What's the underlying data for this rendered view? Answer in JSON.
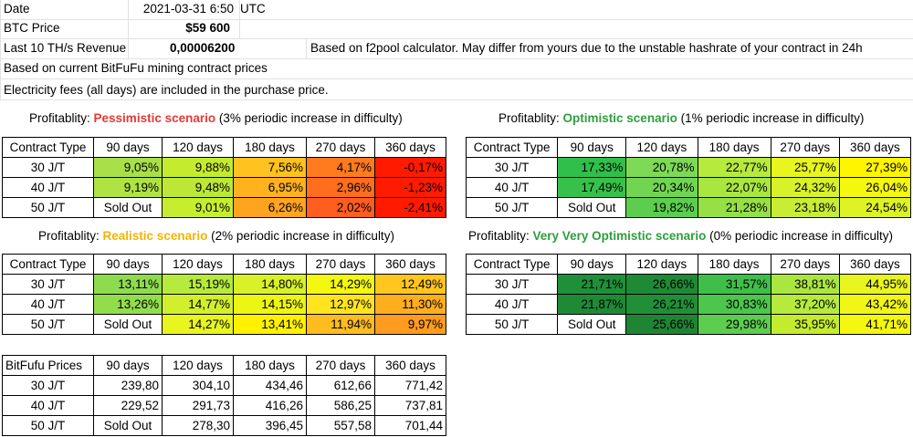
{
  "header": {
    "date_label": "Date",
    "date_value": "2021-03-31 6:50",
    "date_tz": "UTC",
    "btc_label": "BTC Price",
    "btc_value": "$59 600",
    "rev_label": "Last 10 TH/s Revenue",
    "rev_value": "0,00006200",
    "rev_note": "Based on f2pool calculator. May differ from yours due to the unstable hashrate of your contract in 24h",
    "note1": "Based on current BitFuFu mining contract prices",
    "note2": "Electricity fees (all days) are included in the purchase price."
  },
  "colors": {
    "pessimistic": "#e53935",
    "optimistic": "#2e9e3e",
    "realistic": "#f4b400",
    "very_optimistic": "#2e9e3e"
  },
  "columns": [
    "Contract Type",
    "90 days",
    "120 days",
    "180 days",
    "270 days",
    "360 days"
  ],
  "tables": [
    {
      "key": "pess",
      "prefix": "Profitablity: ",
      "scenario": "Pessimistic scenario",
      "suffix": " (3% periodic increase in difficulty)",
      "rows": [
        {
          "type": "30 J/T",
          "values": [
            "9,05%",
            "9,88%",
            "7,56%",
            "4,17%",
            "-0,17%"
          ],
          "colors": [
            "#a9e04a",
            "#c4ec2e",
            "#ffc21e",
            "#ff7b1e",
            "#ff1a00"
          ]
        },
        {
          "type": "40 J/T",
          "values": [
            "9,19%",
            "9,48%",
            "6,95%",
            "2,96%",
            "-1,23%"
          ],
          "colors": [
            "#b0e243",
            "#bde737",
            "#ffb21e",
            "#ff6d1e",
            "#ff1a00"
          ]
        },
        {
          "type": "50 J/T",
          "values": [
            "Sold Out",
            "9,01%",
            "6,26%",
            "2,02%",
            "-2,41%"
          ],
          "colors": [
            "#ffffff",
            "#c6ee2e",
            "#ffa41e",
            "#ff5e1e",
            "#ff1a00"
          ]
        }
      ]
    },
    {
      "key": "opt",
      "prefix": "Profitablity: ",
      "scenario": "Optimistic scenario",
      "suffix": " (1% periodic increase in difficulty)",
      "rows": [
        {
          "type": "30 J/T",
          "values": [
            "17,33%",
            "20,78%",
            "22,77%",
            "25,77%",
            "27,39%"
          ],
          "colors": [
            "#2fbf4a",
            "#7ed957",
            "#b6ea3c",
            "#e8f51e",
            "#fff500"
          ]
        },
        {
          "type": "40 J/T",
          "values": [
            "17,49%",
            "20,34%",
            "22,07%",
            "24,32%",
            "26,04%"
          ],
          "colors": [
            "#36c24a",
            "#72d552",
            "#aae640",
            "#d8f129",
            "#f4f70e"
          ]
        },
        {
          "type": "50 J/T",
          "values": [
            "Sold Out",
            "19,82%",
            "21,28%",
            "23,18%",
            "24,54%"
          ],
          "colors": [
            "#ffffff",
            "#5ccd4e",
            "#96e046",
            "#c8ed34",
            "#def324"
          ]
        }
      ]
    },
    {
      "key": "real",
      "prefix": "Profitablity: ",
      "scenario": "Realistic scenario",
      "suffix": " (2% periodic increase in difficulty)",
      "rows": [
        {
          "type": "30 J/T",
          "values": [
            "13,11%",
            "15,19%",
            "14,80%",
            "14,29%",
            "12,49%"
          ],
          "colors": [
            "#8fdb50",
            "#b6ea3c",
            "#d8f129",
            "#f4f70e",
            "#ffc61e"
          ]
        },
        {
          "type": "40 J/T",
          "values": [
            "13,26%",
            "14,77%",
            "14,15%",
            "12,97%",
            "11,30%"
          ],
          "colors": [
            "#93dd4d",
            "#d2ef2c",
            "#ecf613",
            "#ffe41e",
            "#ffae1e"
          ]
        },
        {
          "type": "50 J/T",
          "values": [
            "Sold Out",
            "14,27%",
            "13,41%",
            "11,94%",
            "9,97%"
          ],
          "colors": [
            "#ffffff",
            "#e8f51e",
            "#fff100",
            "#ffbc1e",
            "#ff9b1e"
          ]
        }
      ]
    },
    {
      "key": "vopt",
      "prefix": "Profitablity: ",
      "scenario": "Very Very Optimistic scenario",
      "suffix": " (0% periodic increase in difficulty)",
      "rows": [
        {
          "type": "30 J/T",
          "values": [
            "21,71%",
            "26,66%",
            "31,57%",
            "38,81%",
            "44,95%"
          ],
          "colors": [
            "#1f8f3a",
            "#1f8a36",
            "#3fbf4a",
            "#aae640",
            "#e8f51e"
          ]
        },
        {
          "type": "40 J/T",
          "values": [
            "21,87%",
            "26,21%",
            "30,83%",
            "37,20%",
            "43,42%"
          ],
          "colors": [
            "#1f8a36",
            "#218f38",
            "#4cc64c",
            "#b6ea3c",
            "#f0f616"
          ]
        },
        {
          "type": "50 J/T",
          "values": [
            "Sold Out",
            "25,66%",
            "29,98%",
            "35,95%",
            "41,71%"
          ],
          "colors": [
            "#ffffff",
            "#1f8534",
            "#5ccd4e",
            "#c4ec2e",
            "#f4f70e"
          ]
        }
      ]
    }
  ],
  "prices": {
    "header": [
      "BitFufu Prices",
      "90 days",
      "120 days",
      "180 days",
      "270 days",
      "360 days"
    ],
    "rows": [
      {
        "type": "30 J/T",
        "values": [
          "239,80",
          "304,10",
          "434,46",
          "612,66",
          "771,42"
        ]
      },
      {
        "type": "40 J/T",
        "values": [
          "229,52",
          "291,73",
          "416,26",
          "586,25",
          "737,81"
        ]
      },
      {
        "type": "50 J/T",
        "values": [
          "Sold Out",
          "278,30",
          "396,45",
          "557,58",
          "701,44"
        ]
      }
    ]
  }
}
